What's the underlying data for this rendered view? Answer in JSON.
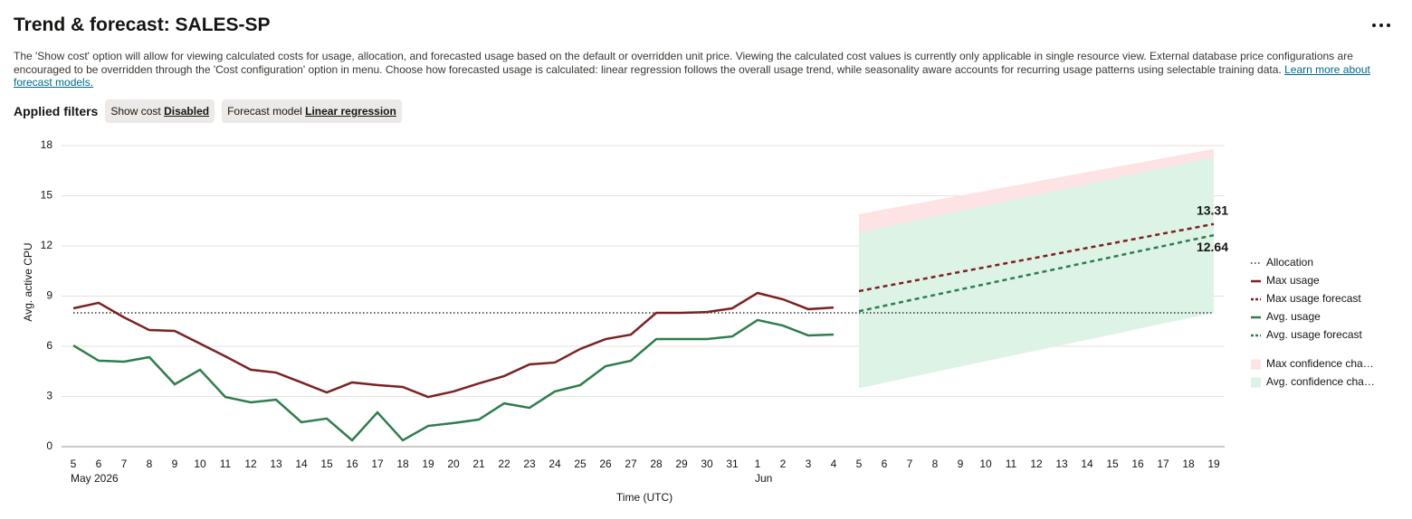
{
  "header": {
    "title": "Trend & forecast: SALES-SP",
    "description": "The 'Show cost' option will allow for viewing calculated costs for usage, allocation, and forecasted usage based on the default or overridden unit price. Viewing the calculated cost values is currently only applicable in single resource view. External database price configurations are encouraged to be overridden through the 'Cost configuration' option in menu. Choose how forecasted usage is calculated: linear regression follows the overall usage trend, while seasonality aware accounts for recurring usage patterns using selectable training data.",
    "link": "Learn more about forecast models."
  },
  "filters": {
    "label": "Applied filters",
    "chips": [
      {
        "name": "Show cost",
        "value": "Disabled"
      },
      {
        "name": "Forecast model",
        "value": "Linear regression"
      }
    ]
  },
  "chart_data": {
    "type": "line",
    "ylabel": "Avg. active CPU",
    "xlabel": "Time (UTC)",
    "categories": [
      "5",
      "6",
      "7",
      "8",
      "9",
      "10",
      "11",
      "12",
      "13",
      "14",
      "15",
      "16",
      "17",
      "18",
      "19",
      "20",
      "21",
      "22",
      "23",
      "24",
      "25",
      "26",
      "27",
      "28",
      "29",
      "30",
      "31",
      "1",
      "2",
      "3",
      "4",
      "5",
      "6",
      "7",
      "8",
      "9",
      "10",
      "11",
      "12",
      "13",
      "14",
      "15",
      "16",
      "17",
      "18",
      "19"
    ],
    "period_labels": [
      {
        "label": "May 2026",
        "start": 0
      },
      {
        "label": "Jun",
        "start": 27
      }
    ],
    "ylim": [
      0,
      18
    ],
    "yticks": [
      0,
      3,
      6,
      9,
      12,
      15,
      18
    ],
    "grid": true,
    "legend": "right",
    "data_labels": "last",
    "series": [
      {
        "name": "Allocation",
        "color": "#333333",
        "style": "dotted",
        "values": [
          8,
          8,
          8,
          8,
          8,
          8,
          8,
          8,
          8,
          8,
          8,
          8,
          8,
          8,
          8,
          8,
          8,
          8,
          8,
          8,
          8,
          8,
          8,
          8,
          8,
          8,
          8,
          8,
          8,
          8,
          8,
          8,
          8,
          8,
          8,
          8,
          8,
          8,
          8,
          8,
          8,
          8,
          8,
          8,
          8,
          8
        ]
      },
      {
        "name": "Max usage",
        "color": "#7a2222",
        "style": "solid",
        "values": [
          8.27,
          8.6,
          7.73,
          6.97,
          6.92,
          6.16,
          5.4,
          4.6,
          4.43,
          3.84,
          3.24,
          3.84,
          3.68,
          3.57,
          2.97,
          3.3,
          3.78,
          4.22,
          4.92,
          5.03,
          5.84,
          6.43,
          6.7,
          8.0,
          8.0,
          8.05,
          8.27,
          9.19,
          8.81,
          8.22,
          8.32,
          null,
          null,
          null,
          null,
          null,
          null,
          null,
          null,
          null,
          null,
          null,
          null,
          null,
          null,
          null
        ]
      },
      {
        "name": "Max usage forecast",
        "color": "#7a2222",
        "style": "dashed",
        "labeled": true,
        "values": [
          null,
          null,
          null,
          null,
          null,
          null,
          null,
          null,
          null,
          null,
          null,
          null,
          null,
          null,
          null,
          null,
          null,
          null,
          null,
          null,
          null,
          null,
          null,
          null,
          null,
          null,
          null,
          null,
          null,
          null,
          null,
          9.3,
          9.59,
          9.87,
          10.16,
          10.45,
          10.73,
          11.02,
          11.3,
          11.59,
          11.88,
          12.16,
          12.45,
          12.74,
          13.02,
          13.31
        ]
      },
      {
        "name": "Avg. usage",
        "color": "#2e7d4c",
        "style": "solid",
        "values": [
          6.05,
          5.14,
          5.08,
          5.35,
          3.73,
          4.6,
          2.97,
          2.65,
          2.81,
          1.46,
          1.68,
          0.38,
          2.05,
          0.38,
          1.24,
          1.41,
          1.62,
          2.59,
          2.32,
          3.3,
          3.68,
          4.81,
          5.14,
          6.43,
          6.43,
          6.43,
          6.59,
          7.57,
          7.24,
          6.65,
          6.7,
          null,
          null,
          null,
          null,
          null,
          null,
          null,
          null,
          null,
          null,
          null,
          null,
          null,
          null,
          null
        ]
      },
      {
        "name": "Avg. usage forecast",
        "color": "#2e7d4c",
        "style": "dashed",
        "labeled": true,
        "values": [
          null,
          null,
          null,
          null,
          null,
          null,
          null,
          null,
          null,
          null,
          null,
          null,
          null,
          null,
          null,
          null,
          null,
          null,
          null,
          null,
          null,
          null,
          null,
          null,
          null,
          null,
          null,
          null,
          null,
          null,
          null,
          8.1,
          8.42,
          8.75,
          9.07,
          9.4,
          9.72,
          10.05,
          10.37,
          10.69,
          11.02,
          11.34,
          11.67,
          11.99,
          12.32,
          12.64
        ]
      }
    ],
    "bands": [
      {
        "name": "Max confidence cha…",
        "color": "#fde3e3",
        "upper": [
          null,
          null,
          null,
          null,
          null,
          null,
          null,
          null,
          null,
          null,
          null,
          null,
          null,
          null,
          null,
          null,
          null,
          null,
          null,
          null,
          null,
          null,
          null,
          null,
          null,
          null,
          null,
          null,
          null,
          null,
          null,
          13.9,
          14.18,
          14.46,
          14.74,
          15.01,
          15.29,
          15.57,
          15.85,
          16.13,
          16.41,
          16.69,
          16.96,
          17.24,
          17.52,
          17.8
        ],
        "lower": [
          null,
          null,
          null,
          null,
          null,
          null,
          null,
          null,
          null,
          null,
          null,
          null,
          null,
          null,
          null,
          null,
          null,
          null,
          null,
          null,
          null,
          null,
          null,
          null,
          null,
          null,
          null,
          null,
          null,
          null,
          null,
          4.3,
          4.61,
          4.93,
          5.24,
          5.56,
          5.87,
          6.19,
          6.5,
          6.81,
          7.13,
          7.44,
          7.76,
          8.07,
          8.39,
          8.7
        ]
      },
      {
        "name": "Avg. confidence cha…",
        "color": "#ddf3e5",
        "upper": [
          null,
          null,
          null,
          null,
          null,
          null,
          null,
          null,
          null,
          null,
          null,
          null,
          null,
          null,
          null,
          null,
          null,
          null,
          null,
          null,
          null,
          null,
          null,
          null,
          null,
          null,
          null,
          null,
          null,
          null,
          null,
          12.8,
          13.12,
          13.44,
          13.76,
          14.09,
          14.41,
          14.73,
          15.05,
          15.37,
          15.69,
          16.01,
          16.34,
          16.66,
          16.98,
          17.3
        ],
        "lower": [
          null,
          null,
          null,
          null,
          null,
          null,
          null,
          null,
          null,
          null,
          null,
          null,
          null,
          null,
          null,
          null,
          null,
          null,
          null,
          null,
          null,
          null,
          null,
          null,
          null,
          null,
          null,
          null,
          null,
          null,
          null,
          3.5,
          3.82,
          4.14,
          4.46,
          4.79,
          5.11,
          5.43,
          5.75,
          6.07,
          6.39,
          6.71,
          7.04,
          7.36,
          7.68,
          8.0
        ]
      }
    ]
  }
}
